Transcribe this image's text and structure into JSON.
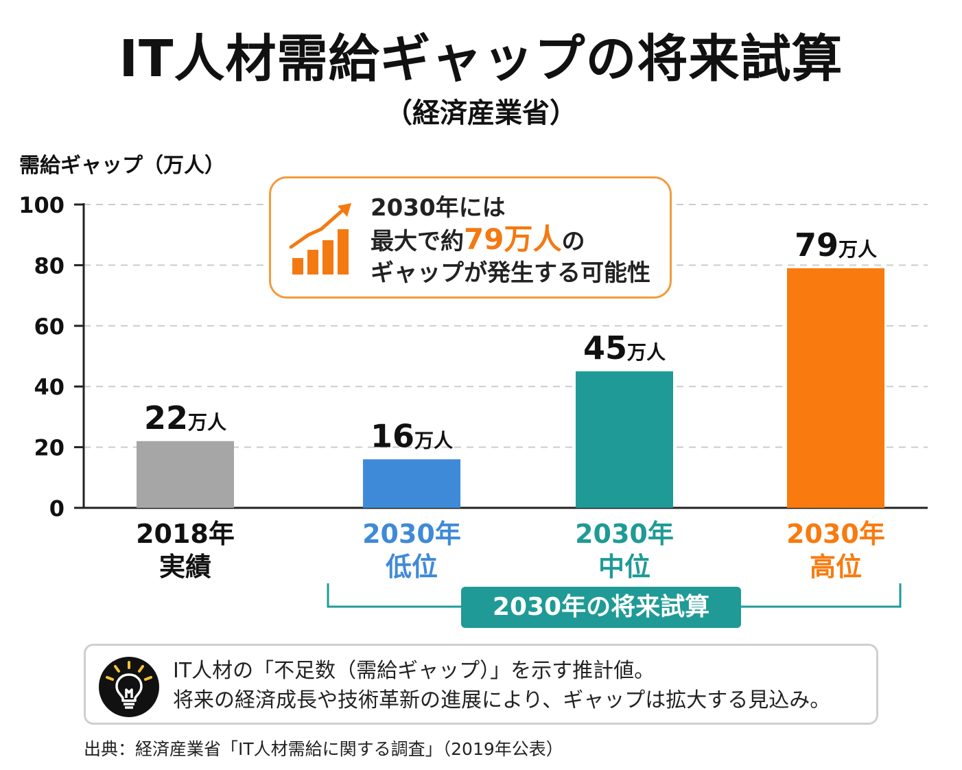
{
  "header": {
    "title": "IT人材需給ギャップの将来試算",
    "subtitle": "（経済産業省）"
  },
  "callout": {
    "line1": "2030年には",
    "line2_prefix": "最大で約",
    "line2_accent": "79万人",
    "line2_suffix": "の",
    "line3": "ギャップが発生する可能性"
  },
  "categories": [
    {
      "year": "2018年",
      "sub": "実績"
    },
    {
      "year": "2030年",
      "sub": "低位"
    },
    {
      "year": "2030年",
      "sub": "中位"
    },
    {
      "year": "2030年",
      "sub": "高位"
    }
  ],
  "future_badge": "2030年の将来試算",
  "note": {
    "line1": "IT人材の「不足数（需給ギャップ）」を示す推計値。",
    "line2": "将来の経済成長や技術革新の進展により、ギャップは拡大する見込み。"
  },
  "source": "出典：経済産業省「IT人材需給に関する調査」（2019年公表）",
  "colors": {
    "gray": "#a6a6a6",
    "blue": "#3f8ad8",
    "teal": "#1f9a96",
    "orange": "#f97a0e",
    "callout_border": "#f39a3a"
  },
  "chart_data": {
    "type": "bar",
    "ylabel": "需給ギャップ（万人）",
    "ylim": [
      0,
      100
    ],
    "yticks": [
      "0",
      "20",
      "40",
      "60",
      "80",
      "100"
    ],
    "grid": true,
    "categories": [
      "2018年 実績",
      "2030年 低位",
      "2030年 中位",
      "2030年 高位"
    ],
    "values": [
      22,
      16,
      45,
      79
    ],
    "value_numbers": [
      "22",
      "16",
      "45",
      "79"
    ],
    "unit": "万人",
    "bar_colors": [
      "#a6a6a6",
      "#3f8ad8",
      "#1f9a96",
      "#f97a0e"
    ]
  }
}
